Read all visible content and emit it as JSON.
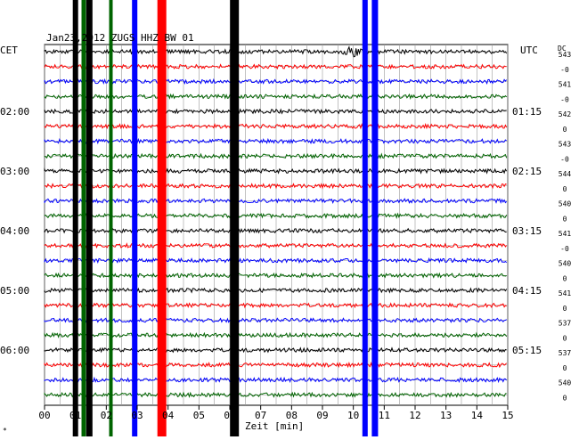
{
  "chart_data": {
    "type": "line",
    "title": "Jan23,2012   ZUGS HHZ BW 01",
    "xlabel": "Zeit [min]",
    "left_timezone": "CET",
    "right_timezone": "UTC",
    "right_header": "DC",
    "x_ticks": [
      "00",
      "01",
      "02",
      "03",
      "04",
      "05",
      "06",
      "07",
      "08",
      "09",
      "10",
      "11",
      "12",
      "13",
      "14",
      "15"
    ],
    "xlim": [
      0,
      15
    ],
    "left_time_labels": [
      "02:00",
      "03:00",
      "04:00",
      "05:00",
      "06:00"
    ],
    "right_time_labels": [
      "01:15",
      "02:15",
      "03:15",
      "04:15",
      "05:15"
    ],
    "trace_colors": [
      "#000000",
      "#ff0000",
      "#0000ff",
      "#006400"
    ],
    "trace_count": 24,
    "dc_offsets": [
      "543",
      "-0",
      "541",
      "-0",
      "542",
      "0",
      "543",
      "-0",
      "544",
      "0",
      "540",
      "0",
      "541",
      "-0",
      "540",
      "0",
      "541",
      "0",
      "537",
      "0",
      "537",
      "0",
      "540",
      "0"
    ],
    "bands": [
      {
        "x": 1.0,
        "color": "#000000",
        "width": 6
      },
      {
        "x": 1.27,
        "color": "#006400",
        "width": 5
      },
      {
        "x": 1.45,
        "color": "#000000",
        "width": 7
      },
      {
        "x": 2.15,
        "color": "#006400",
        "width": 4
      },
      {
        "x": 2.92,
        "color": "#0000ff",
        "width": 6
      },
      {
        "x": 3.8,
        "color": "#ff0000",
        "width": 10
      },
      {
        "x": 6.15,
        "color": "#000000",
        "width": 10
      },
      {
        "x": 10.38,
        "color": "#0000ff",
        "width": 6
      },
      {
        "x": 10.7,
        "color": "#0000ff",
        "width": 7
      }
    ],
    "event": {
      "x": 9.95,
      "trace": 0
    },
    "grid": true,
    "footer_mark": "*"
  }
}
